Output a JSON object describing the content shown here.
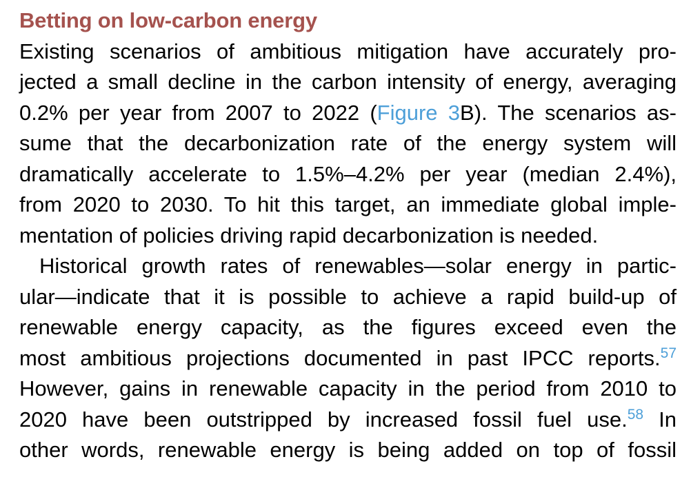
{
  "page": {
    "background_color": "#ffffff"
  },
  "colors": {
    "heading_red": "#A5524E",
    "body_text": "#000000",
    "link_blue": "#4D9FD8"
  },
  "heading": {
    "text": "Betting on low-carbon energy"
  },
  "article": {
    "lines": [
      {
        "justify": true,
        "indent": false,
        "segments": [
          {
            "text": "Existing scenarios of ambitious mitigation have accurately pro-",
            "style": "body"
          }
        ]
      },
      {
        "justify": true,
        "indent": false,
        "segments": [
          {
            "text": "jected a small decline in the carbon intensity of energy, averaging",
            "style": "body"
          }
        ]
      },
      {
        "justify": true,
        "indent": false,
        "segments": [
          {
            "text": "0.2% per year from 2007 to 2022 (",
            "style": "body"
          },
          {
            "text": "Figure 3",
            "style": "link",
            "name": "figure-3-link",
            "interactable": true
          },
          {
            "text": "B). The scenarios as-",
            "style": "body"
          }
        ]
      },
      {
        "justify": true,
        "indent": false,
        "segments": [
          {
            "text": "sume that the decarbonization rate of the energy system will",
            "style": "body"
          }
        ]
      },
      {
        "justify": true,
        "indent": false,
        "segments": [
          {
            "text": "dramatically accelerate to 1.5%–4.2% per year (median 2.4%),",
            "style": "body"
          }
        ]
      },
      {
        "justify": true,
        "indent": false,
        "segments": [
          {
            "text": "from 2020 to 2030. To hit this target, an immediate global imple-",
            "style": "body"
          }
        ]
      },
      {
        "justify": false,
        "indent": false,
        "segments": [
          {
            "text": "mentation of policies driving rapid decarbonization is needed.",
            "style": "body"
          }
        ]
      },
      {
        "justify": true,
        "indent": true,
        "segments": [
          {
            "text": "Historical growth rates of renewables—solar energy in partic-",
            "style": "body"
          }
        ]
      },
      {
        "justify": true,
        "indent": false,
        "segments": [
          {
            "text": "ular—indicate that it is possible to achieve a rapid build-up of",
            "style": "body"
          }
        ]
      },
      {
        "justify": true,
        "indent": false,
        "segments": [
          {
            "text": "renewable energy capacity, as the figures exceed even the",
            "style": "body"
          }
        ]
      },
      {
        "justify": true,
        "indent": false,
        "segments": [
          {
            "text": "most ambitious projections documented in past IPCC reports.",
            "style": "body"
          },
          {
            "text": "57",
            "style": "sup",
            "name": "citation-ref-57",
            "interactable": true
          }
        ]
      },
      {
        "justify": true,
        "indent": false,
        "segments": [
          {
            "text": "However, gains in renewable capacity in the period from 2010 to",
            "style": "body"
          }
        ]
      },
      {
        "justify": true,
        "indent": false,
        "segments": [
          {
            "text": "2020 have been outstripped by increased fossil fuel use.",
            "style": "body"
          },
          {
            "text": "58",
            "style": "sup",
            "name": "citation-ref-58",
            "interactable": true
          },
          {
            "text": " In",
            "style": "body"
          }
        ]
      },
      {
        "justify": true,
        "indent": false,
        "segments": [
          {
            "text": "other words, renewable energy is being added on top of fossil",
            "style": "body"
          }
        ]
      }
    ]
  }
}
